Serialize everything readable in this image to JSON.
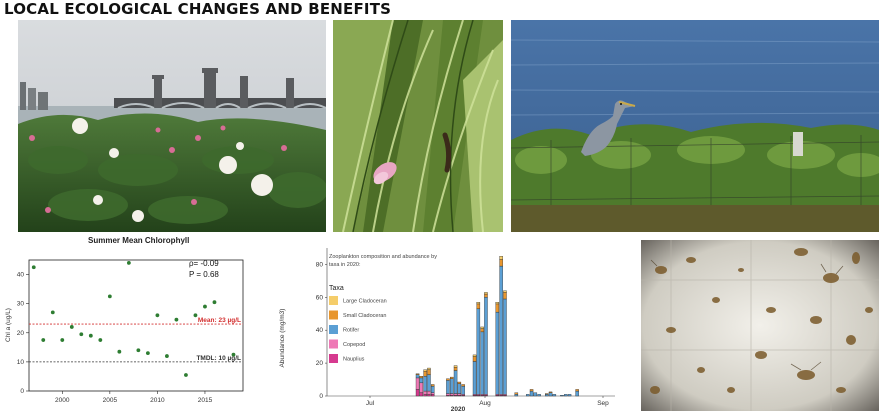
{
  "page": {
    "title": "LOCAL ECOLOGICAL CHANGES AND BENEFITS"
  },
  "photos": [
    {
      "name": "charles-river-bridge-photo"
    },
    {
      "name": "caterpillar-grass-photo"
    },
    {
      "name": "heron-photo"
    },
    {
      "name": "zooplankton-microscope-photo"
    }
  ],
  "chart_data": [
    {
      "type": "scatter",
      "title": "Summer Mean Chlorophyll",
      "xlabel": "",
      "ylabel": "Chl a (ug/L)",
      "xlim": [
        1996.5,
        2019
      ],
      "ylim": [
        0,
        45
      ],
      "xticks": [
        2000,
        2005,
        2010,
        2015
      ],
      "yticks": [
        0,
        10,
        20,
        30,
        40
      ],
      "points": [
        {
          "x": 1997,
          "y": 42.5
        },
        {
          "x": 1998,
          "y": 17.5
        },
        {
          "x": 1999,
          "y": 27
        },
        {
          "x": 2000,
          "y": 17.5
        },
        {
          "x": 2001,
          "y": 22
        },
        {
          "x": 2002,
          "y": 19.5
        },
        {
          "x": 2003,
          "y": 19
        },
        {
          "x": 2004,
          "y": 17.5
        },
        {
          "x": 2005,
          "y": 32.5
        },
        {
          "x": 2006,
          "y": 13.5
        },
        {
          "x": 2007,
          "y": 44
        },
        {
          "x": 2008,
          "y": 14
        },
        {
          "x": 2009,
          "y": 13
        },
        {
          "x": 2010,
          "y": 26
        },
        {
          "x": 2011,
          "y": 12
        },
        {
          "x": 2012,
          "y": 24.5
        },
        {
          "x": 2013,
          "y": 5.5
        },
        {
          "x": 2014,
          "y": 26
        },
        {
          "x": 2015,
          "y": 29
        },
        {
          "x": 2016,
          "y": 30.5
        },
        {
          "x": 2018,
          "y": 12.5
        }
      ],
      "point_color": "#2e7d32",
      "stats": {
        "rho": "ρ= -0.09",
        "p": "P = 0.68"
      },
      "reference_lines": [
        {
          "value": 23,
          "label": "Mean: 23 µg/L",
          "color": "#d32f2f"
        },
        {
          "value": 10,
          "label": "TMDL: 10 µg/L",
          "color": "#333333"
        }
      ]
    },
    {
      "type": "bar",
      "stacked": true,
      "title": "Zooplankton composition and abundance by taxa in 2020:",
      "xlabel": "2020",
      "ylabel": "Abundance (mg/m3)",
      "ylim": [
        0,
        90
      ],
      "yticks": [
        0,
        20,
        40,
        60,
        80
      ],
      "xticks": [
        "Jul",
        "Aug",
        "Sep"
      ],
      "legend": {
        "title": "Taxa",
        "position": "left",
        "entries": [
          {
            "name": "Large Cladoceran",
            "color": "#f5cd6a"
          },
          {
            "name": "Small Cladoceran",
            "color": "#e8962e"
          },
          {
            "name": "Rotifer",
            "color": "#5b9fd4"
          },
          {
            "name": "Copepod",
            "color": "#ee79b6"
          },
          {
            "name": "Nauplius",
            "color": "#d63a8f"
          }
        ]
      },
      "series_order": [
        "Nauplius",
        "Copepod",
        "Rotifer",
        "Small Cladoceran",
        "Large Cladoceran"
      ],
      "bars": [
        {
          "d": 0,
          "v": [
            4,
            7,
            2,
            0.5,
            0
          ]
        },
        {
          "d": 1,
          "v": [
            2,
            6,
            3,
            1,
            0
          ]
        },
        {
          "d": 2,
          "v": [
            1,
            2,
            9,
            3,
            1
          ]
        },
        {
          "d": 3,
          "v": [
            1,
            2,
            10,
            3,
            1
          ]
        },
        {
          "d": 4,
          "v": [
            1,
            1,
            4,
            1,
            0
          ]
        },
        {
          "d": 8,
          "v": [
            0.5,
            1,
            8,
            1,
            0
          ]
        },
        {
          "d": 9,
          "v": [
            0.5,
            1,
            9,
            1,
            0
          ]
        },
        {
          "d": 10,
          "v": [
            0.5,
            1,
            14,
            2,
            1
          ]
        },
        {
          "d": 11,
          "v": [
            0.5,
            1,
            6,
            1,
            0
          ]
        },
        {
          "d": 12,
          "v": [
            0.5,
            0.5,
            5,
            1,
            0
          ]
        },
        {
          "d": 15,
          "v": [
            0.5,
            0.5,
            20,
            3,
            1
          ]
        },
        {
          "d": 16,
          "v": [
            0.5,
            0.5,
            52,
            3,
            1
          ]
        },
        {
          "d": 17,
          "v": [
            0.5,
            0.5,
            38,
            2,
            1
          ]
        },
        {
          "d": 18,
          "v": [
            0.5,
            0.5,
            59,
            2,
            1
          ]
        },
        {
          "d": 21,
          "v": [
            0.5,
            0.5,
            50,
            5,
            1
          ]
        },
        {
          "d": 22,
          "v": [
            0.5,
            0.5,
            78,
            4,
            2
          ]
        },
        {
          "d": 23,
          "v": [
            0.5,
            0.5,
            58,
            4,
            1
          ]
        },
        {
          "d": 26,
          "v": [
            0,
            0,
            1,
            1,
            0
          ]
        },
        {
          "d": 29,
          "v": [
            0,
            0,
            1,
            0,
            0
          ]
        },
        {
          "d": 30,
          "v": [
            0,
            0,
            3,
            1,
            0
          ]
        },
        {
          "d": 31,
          "v": [
            0,
            0,
            2,
            0,
            0
          ]
        },
        {
          "d": 32,
          "v": [
            0,
            0,
            1,
            0,
            0
          ]
        },
        {
          "d": 34,
          "v": [
            0,
            0,
            1,
            0.5,
            0
          ]
        },
        {
          "d": 35,
          "v": [
            0,
            0,
            2,
            0.5,
            0
          ]
        },
        {
          "d": 36,
          "v": [
            0,
            0,
            1,
            0,
            0
          ]
        },
        {
          "d": 38,
          "v": [
            0,
            0,
            0.5,
            0,
            0
          ]
        },
        {
          "d": 39,
          "v": [
            0,
            0,
            1,
            0,
            0
          ]
        },
        {
          "d": 40,
          "v": [
            0,
            0,
            1,
            0,
            0
          ]
        },
        {
          "d": 42,
          "v": [
            0,
            0,
            3,
            1,
            0
          ]
        }
      ]
    }
  ]
}
